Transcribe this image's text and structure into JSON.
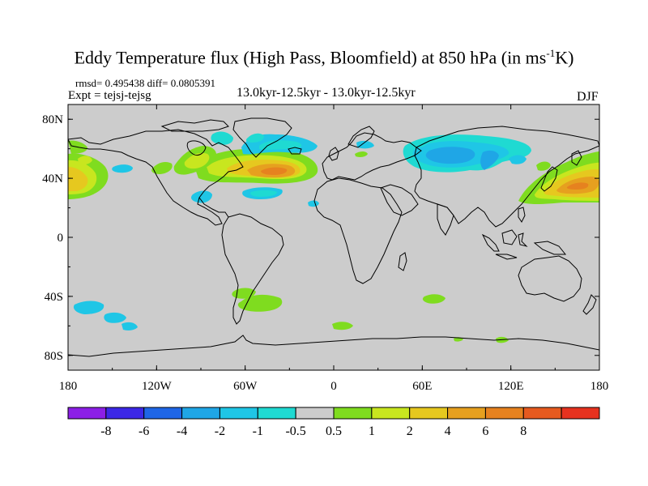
{
  "title": {
    "main": "Eddy Temperature flux (High Pass, Bloomfield) at 850 hPa (in ms",
    "sup": "-1",
    "end": "K)"
  },
  "stats": "rmsd= 0.495438 diff= 0.0805391",
  "expt": "Expt = tejsj-tejsg",
  "period": "13.0kyr-12.5kyr - 13.0kyr-12.5kyr",
  "season": "DJF",
  "map": {
    "projection": "cylindrical-equidistant",
    "lon_range": [
      -180,
      180
    ],
    "lat_range": [
      -90,
      90
    ],
    "lat_ticks": [
      {
        "value": 80,
        "label": "80N"
      },
      {
        "value": 40,
        "label": "40N"
      },
      {
        "value": 0,
        "label": "0"
      },
      {
        "value": -40,
        "label": "40S"
      },
      {
        "value": -80,
        "label": "80S"
      }
    ],
    "lon_ticks": [
      {
        "value": -180,
        "label": "180"
      },
      {
        "value": -120,
        "label": "120W"
      },
      {
        "value": -60,
        "label": "60W"
      },
      {
        "value": 0,
        "label": "0"
      },
      {
        "value": 60,
        "label": "60E"
      },
      {
        "value": 120,
        "label": "120E"
      },
      {
        "value": 180,
        "label": "180"
      }
    ],
    "background_color": "#cccccc",
    "anomalies": [
      {
        "region": "North Atlantic",
        "lon": -40,
        "lat": 43,
        "level": "4"
      },
      {
        "region": "North Pacific west",
        "lon": 150,
        "lat": 38,
        "level": "4"
      },
      {
        "region": "North Pacific east",
        "lon": -178,
        "lat": 45,
        "level": "1"
      },
      {
        "region": "Siberia",
        "lon": 80,
        "lat": 55,
        "level": "-2"
      },
      {
        "region": "Greenland/Iceland",
        "lon": -30,
        "lat": 62,
        "level": "-1"
      },
      {
        "region": "South Atlantic",
        "lon": -60,
        "lat": -38,
        "level": "1"
      },
      {
        "region": "South Pacific",
        "lon": -160,
        "lat": -45,
        "level": "-1"
      }
    ]
  },
  "colorbar": {
    "colors": [
      "#8c1fe6",
      "#3c28e6",
      "#1f66e6",
      "#1fa6e6",
      "#1fc6e6",
      "#1fdad2",
      "#cccccc",
      "#7fdc1f",
      "#c8e61f",
      "#e6c81f",
      "#e6a01f",
      "#e6821f",
      "#e65a1f",
      "#e6321f"
    ],
    "labels": [
      "-8",
      "-6",
      "-4",
      "-2",
      "-1",
      "-0.5",
      "0.5",
      "1",
      "2",
      "4",
      "6",
      "8"
    ]
  }
}
